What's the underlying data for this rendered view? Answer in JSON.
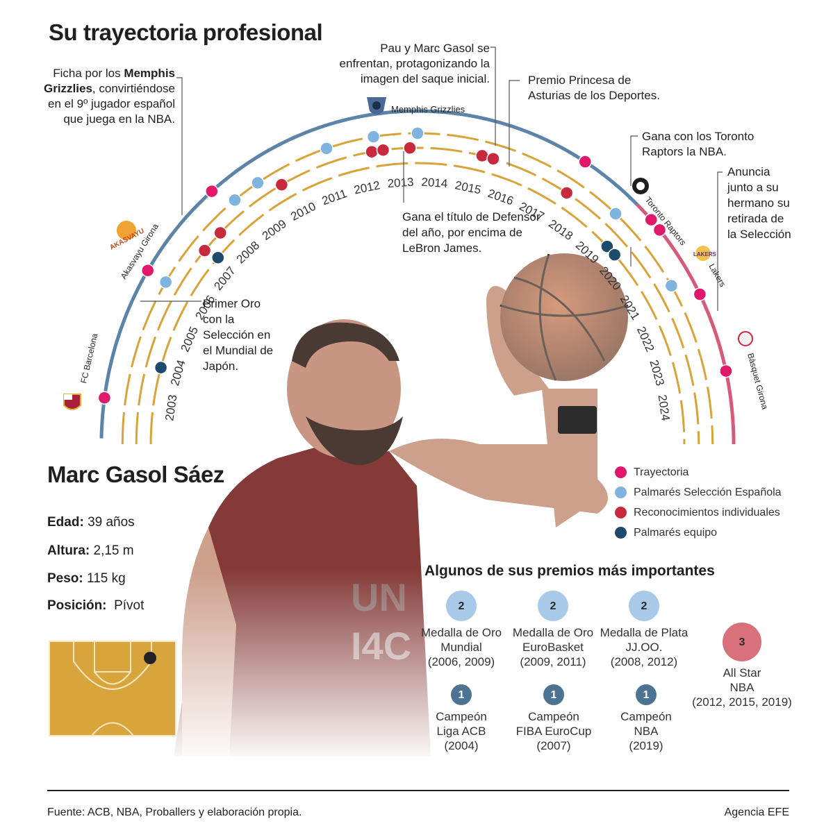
{
  "title": "Su trayectoria profesional",
  "player": {
    "name": "Marc Gasol Sáez",
    "stats": [
      {
        "label": "Edad:",
        "value": "39 años"
      },
      {
        "label": "Altura:",
        "value": "2,15 m"
      },
      {
        "label": "Peso:",
        "value": "115 kg"
      },
      {
        "label": "Posición:",
        "value": "Pívot"
      }
    ]
  },
  "years": [
    "2003",
    "2004",
    "2005",
    "2006",
    "2007",
    "2008",
    "2009",
    "2010",
    "2011",
    "2012",
    "2013",
    "2014",
    "2015",
    "2016",
    "2017",
    "2018",
    "2019",
    "2020",
    "2021",
    "2022",
    "2023",
    "2024"
  ],
  "teams": [
    "FC Barcelona",
    "Akasvayu Girona",
    "Memphis Grizzlies",
    "Toronto Raptors",
    "Lakers",
    "Bàsquet Girona"
  ],
  "annotations": {
    "grizzlies": {
      "pre": "Ficha por los ",
      "bold1": "Memphis",
      "bold2": "Grizzlies",
      "rest": [
        ", convirtiéndose",
        "en el 9º jugador español",
        "que juega en la NBA."
      ]
    },
    "saque": [
      "Pau y Marc Gasol se",
      "enfrentan, protagonizando la",
      "imagen del saque inicial."
    ],
    "asturias": [
      "Premio Princesa de",
      "Asturias de los Deportes."
    ],
    "toronto": [
      "Gana con los Toronto",
      "Raptors la NBA."
    ],
    "retirada": [
      "Anuncia",
      "junto a su",
      "hermano su",
      "retirada de",
      "la Selección"
    ],
    "defensor": [
      "Gana el título de Defensor",
      "del año, por encima de",
      "LeBron James."
    ],
    "oro": [
      "Primer Oro",
      "con la",
      "Selección en",
      "el Mundial de",
      "Japón."
    ]
  },
  "legend": [
    {
      "label": "Trayectoria",
      "color": "#e0176a"
    },
    {
      "label": "Palmarés Selección Española",
      "color": "#7fb4e0"
    },
    {
      "label": "Reconocimientos individuales",
      "color": "#c8293c"
    },
    {
      "label": "Palmarés equipo",
      "color": "#1e4a6b"
    }
  ],
  "awards_title": "Algunos de sus premios más importantes",
  "awards": [
    {
      "count": "2",
      "lines": [
        "Medalla de Oro",
        "Mundial",
        "(2006, 2009)"
      ],
      "color": "#a8c9e8"
    },
    {
      "count": "2",
      "lines": [
        "Medalla de Oro",
        "EuroBasket",
        "(2009, 2011)"
      ],
      "color": "#a8c9e8"
    },
    {
      "count": "2",
      "lines": [
        "Medalla de Plata",
        "JJ.OO.",
        "(2008, 2012)"
      ],
      "color": "#a8c9e8"
    },
    {
      "count": "3",
      "lines": [
        "All Star",
        "NBA",
        "(2012, 2015, 2019)"
      ],
      "color": "#d9717c"
    },
    {
      "count": "1",
      "lines": [
        "Campeón",
        "Liga ACB",
        "(2004)"
      ],
      "color": "#4d7393"
    },
    {
      "count": "1",
      "lines": [
        "Campeón",
        "FIBA EuroCup",
        "(2007)"
      ],
      "color": "#4d7393"
    },
    {
      "count": "1",
      "lines": [
        "Campeón",
        "NBA",
        "(2019)"
      ],
      "color": "#4d7393"
    }
  ],
  "footer": {
    "source": "Fuente: ACB, NBA, Proballers y elaboración propia.",
    "agency": "Agencia EFE"
  }
}
